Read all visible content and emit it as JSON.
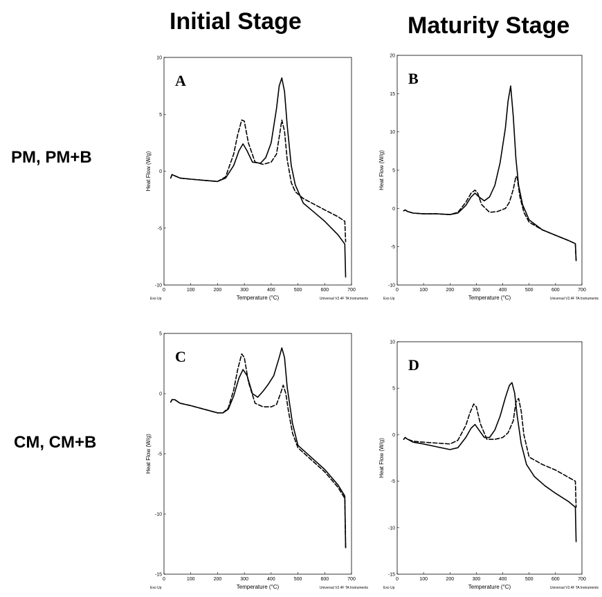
{
  "columns": [
    "Initial Stage",
    "Maturity Stage"
  ],
  "rows": [
    "PM, PM+B",
    "CM, CM+B"
  ],
  "footer": {
    "left": "Exo Up",
    "right": "Universal V2.4F TA Instruments"
  },
  "chart_data": [
    {
      "type": "line",
      "panel": "A",
      "xlabel": "Temperature (°C)",
      "ylabel": "Heat Flow (W/g)",
      "xlim": [
        0,
        700
      ],
      "ylim": [
        -10,
        10
      ],
      "xticks": [
        0,
        100,
        200,
        300,
        400,
        500,
        600,
        700
      ],
      "yticks": [
        -10,
        -5,
        0,
        5,
        10
      ],
      "series": [
        {
          "style": "solid",
          "x": [
            25,
            30,
            40,
            60,
            100,
            150,
            200,
            230,
            260,
            280,
            295,
            310,
            330,
            360,
            380,
            400,
            420,
            430,
            440,
            450,
            460,
            475,
            490,
            520,
            560,
            600,
            650,
            675,
            678
          ],
          "y": [
            -0.6,
            -0.3,
            -0.4,
            -0.6,
            -0.7,
            -0.8,
            -0.9,
            -0.6,
            0.5,
            1.8,
            2.4,
            1.8,
            0.8,
            0.7,
            1.2,
            2.5,
            5.5,
            7.5,
            8.2,
            7.0,
            4.0,
            0.5,
            -1.2,
            -2.8,
            -3.6,
            -4.4,
            -5.6,
            -6.4,
            -9.3
          ]
        },
        {
          "style": "dashed",
          "x": [
            25,
            30,
            40,
            60,
            100,
            150,
            200,
            230,
            260,
            275,
            290,
            300,
            315,
            340,
            370,
            400,
            420,
            430,
            440,
            450,
            460,
            475,
            490,
            520,
            560,
            600,
            650,
            675,
            678
          ],
          "y": [
            -0.6,
            -0.3,
            -0.4,
            -0.6,
            -0.7,
            -0.8,
            -0.9,
            -0.5,
            1.5,
            3.2,
            4.5,
            4.4,
            2.5,
            0.8,
            0.6,
            0.8,
            1.5,
            3.0,
            4.5,
            3.5,
            1.0,
            -1.0,
            -1.8,
            -2.4,
            -2.9,
            -3.4,
            -4.0,
            -4.4,
            -6.2
          ]
        }
      ]
    },
    {
      "type": "line",
      "panel": "B",
      "xlabel": "Temperature (°C)",
      "ylabel": "Heat Flow (W/g)",
      "xlim": [
        0,
        700
      ],
      "ylim": [
        -10,
        20
      ],
      "xticks": [
        0,
        100,
        200,
        300,
        400,
        500,
        600,
        700
      ],
      "yticks": [
        -10,
        -5,
        0,
        5,
        10,
        15,
        20
      ],
      "series": [
        {
          "style": "solid",
          "x": [
            25,
            30,
            40,
            60,
            100,
            150,
            200,
            230,
            260,
            280,
            295,
            310,
            330,
            350,
            370,
            390,
            410,
            420,
            430,
            440,
            450,
            460,
            475,
            500,
            550,
            600,
            650,
            675,
            678
          ],
          "y": [
            -0.3,
            -0.2,
            -0.4,
            -0.6,
            -0.7,
            -0.7,
            -0.8,
            -0.6,
            0.4,
            1.5,
            2.0,
            1.5,
            1.0,
            1.5,
            3.0,
            6.0,
            10.5,
            14.0,
            16.0,
            12.0,
            6.5,
            3.0,
            0.5,
            -1.5,
            -2.8,
            -3.5,
            -4.2,
            -4.6,
            -6.8
          ]
        },
        {
          "style": "dashed",
          "x": [
            25,
            30,
            40,
            60,
            100,
            150,
            200,
            230,
            260,
            280,
            295,
            305,
            320,
            350,
            380,
            410,
            425,
            440,
            450,
            455,
            465,
            480,
            500,
            550,
            600,
            650,
            675,
            678
          ],
          "y": [
            -0.3,
            -0.2,
            -0.4,
            -0.6,
            -0.7,
            -0.7,
            -0.8,
            -0.5,
            0.8,
            2.0,
            2.4,
            2.0,
            0.5,
            -0.5,
            -0.4,
            0.0,
            0.8,
            2.5,
            4.2,
            4.0,
            1.5,
            -0.5,
            -1.8,
            -2.8,
            -3.5,
            -4.2,
            -4.6,
            -6.8
          ]
        }
      ]
    },
    {
      "type": "line",
      "panel": "C",
      "xlabel": "Temperature (°C)",
      "ylabel": "Heat Flow (W/g)",
      "xlim": [
        0,
        700
      ],
      "ylim": [
        -15,
        5
      ],
      "xticks": [
        0,
        100,
        200,
        300,
        400,
        500,
        600,
        700
      ],
      "yticks": [
        -15,
        -10,
        -5,
        0,
        5
      ],
      "series": [
        {
          "style": "solid",
          "x": [
            25,
            30,
            40,
            60,
            100,
            150,
            200,
            220,
            240,
            260,
            280,
            295,
            310,
            330,
            350,
            370,
            390,
            410,
            430,
            440,
            450,
            460,
            480,
            500,
            550,
            600,
            650,
            675,
            678
          ],
          "y": [
            -0.7,
            -0.5,
            -0.5,
            -0.8,
            -1.0,
            -1.3,
            -1.6,
            -1.6,
            -1.3,
            -0.2,
            1.3,
            2.0,
            1.5,
            0.0,
            -0.3,
            0.2,
            0.8,
            1.5,
            3.0,
            3.8,
            3.0,
            0.5,
            -2.5,
            -4.3,
            -5.3,
            -6.3,
            -7.6,
            -8.5,
            -12.8
          ]
        },
        {
          "style": "dashed",
          "x": [
            25,
            30,
            40,
            60,
            100,
            150,
            200,
            220,
            240,
            260,
            275,
            290,
            300,
            315,
            340,
            370,
            400,
            420,
            435,
            445,
            455,
            465,
            480,
            500,
            550,
            600,
            650,
            675,
            678
          ],
          "y": [
            -0.7,
            -0.5,
            -0.5,
            -0.8,
            -1.0,
            -1.3,
            -1.6,
            -1.6,
            -1.2,
            0.3,
            2.0,
            3.3,
            3.0,
            1.0,
            -0.8,
            -1.1,
            -1.1,
            -0.9,
            0.0,
            0.7,
            0.0,
            -1.5,
            -3.3,
            -4.5,
            -5.5,
            -6.5,
            -7.8,
            -8.7,
            -12.8
          ]
        }
      ]
    },
    {
      "type": "line",
      "panel": "D",
      "xlabel": "Temperature (°C)",
      "ylabel": "Heat Flow (W/g)",
      "xlim": [
        0,
        700
      ],
      "ylim": [
        -15,
        10
      ],
      "xticks": [
        0,
        100,
        200,
        300,
        400,
        500,
        600,
        700
      ],
      "yticks": [
        -15,
        -10,
        -5,
        0,
        5,
        10
      ],
      "series": [
        {
          "style": "solid",
          "x": [
            25,
            30,
            40,
            60,
            100,
            150,
            200,
            230,
            260,
            280,
            295,
            310,
            330,
            350,
            370,
            390,
            410,
            425,
            435,
            445,
            455,
            470,
            490,
            520,
            560,
            600,
            650,
            675,
            678
          ],
          "y": [
            -0.5,
            -0.3,
            -0.5,
            -0.8,
            -1.0,
            -1.3,
            -1.6,
            -1.4,
            -0.3,
            0.7,
            1.1,
            0.5,
            -0.3,
            -0.3,
            0.5,
            2.0,
            4.0,
            5.3,
            5.6,
            4.5,
            2.0,
            -1.0,
            -3.2,
            -4.5,
            -5.5,
            -6.3,
            -7.2,
            -7.8,
            -11.5
          ]
        },
        {
          "style": "dashed",
          "x": [
            25,
            30,
            40,
            60,
            100,
            150,
            200,
            230,
            260,
            275,
            290,
            300,
            315,
            340,
            370,
            400,
            420,
            440,
            450,
            460,
            470,
            480,
            500,
            550,
            600,
            650,
            675,
            678
          ],
          "y": [
            -0.5,
            -0.3,
            -0.5,
            -0.7,
            -0.8,
            -0.9,
            -1.0,
            -0.6,
            1.0,
            2.3,
            3.3,
            3.0,
            1.2,
            -0.5,
            -0.5,
            -0.3,
            0.2,
            1.5,
            3.5,
            3.9,
            2.5,
            0.0,
            -2.4,
            -3.2,
            -3.8,
            -4.6,
            -5.0,
            -7.8
          ]
        }
      ]
    }
  ]
}
